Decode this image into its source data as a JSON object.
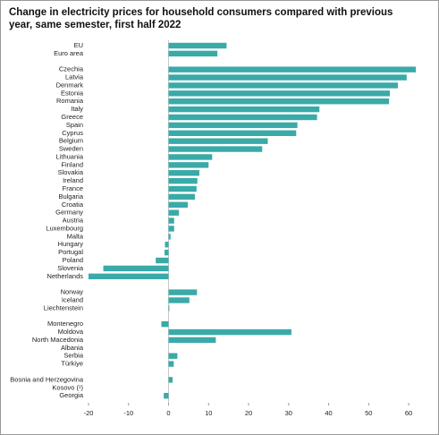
{
  "chart_data": {
    "type": "hbar",
    "title": "Change in electricity prices for household consumers compared with previous year, same semester, first half 2022",
    "categories": [
      "EU",
      "Euro area",
      null,
      "Czechia",
      "Latvia",
      "Denmark",
      "Estonia",
      "Romania",
      "Italy",
      "Greece",
      "Spain",
      "Cyprus",
      "Belgium",
      "Sweden",
      "Lithuania",
      "Finland",
      "Slovakia",
      "Ireland",
      "France",
      "Bulgaria",
      "Croatia",
      "Germany",
      "Austria",
      "Luxembourg",
      "Malta",
      "Hungary",
      "Portugal",
      "Poland",
      "Slovenia",
      "Netherlands",
      null,
      "Norway",
      "Iceland",
      "Liechtenstein",
      null,
      "Montenegro",
      "Moldova",
      "North Macedonia",
      "Albania",
      "Serbia",
      "Türkiye",
      null,
      "Bosnia and Herzegovina",
      "Kosovo (¹)",
      "Georgia"
    ],
    "values": [
      14.5,
      12.2,
      null,
      61.8,
      59.5,
      57.3,
      55.3,
      55.1,
      37.7,
      37.1,
      32.2,
      31.9,
      24.8,
      23.4,
      10.9,
      10.0,
      7.7,
      7.2,
      7.0,
      6.6,
      4.8,
      2.6,
      1.4,
      1.4,
      0.5,
      -0.9,
      -1.0,
      -3.2,
      -16.3,
      -20,
      null,
      7.1,
      5.2,
      0.2,
      null,
      -1.8,
      30.7,
      11.8,
      null,
      2.2,
      1.3,
      null,
      1.0,
      null,
      -1.2
    ],
    "color": "#3aaaa8",
    "xlim": [
      -20,
      63
    ],
    "xticks": [
      -20,
      -10,
      0,
      10,
      20,
      30,
      40,
      50,
      60
    ]
  }
}
